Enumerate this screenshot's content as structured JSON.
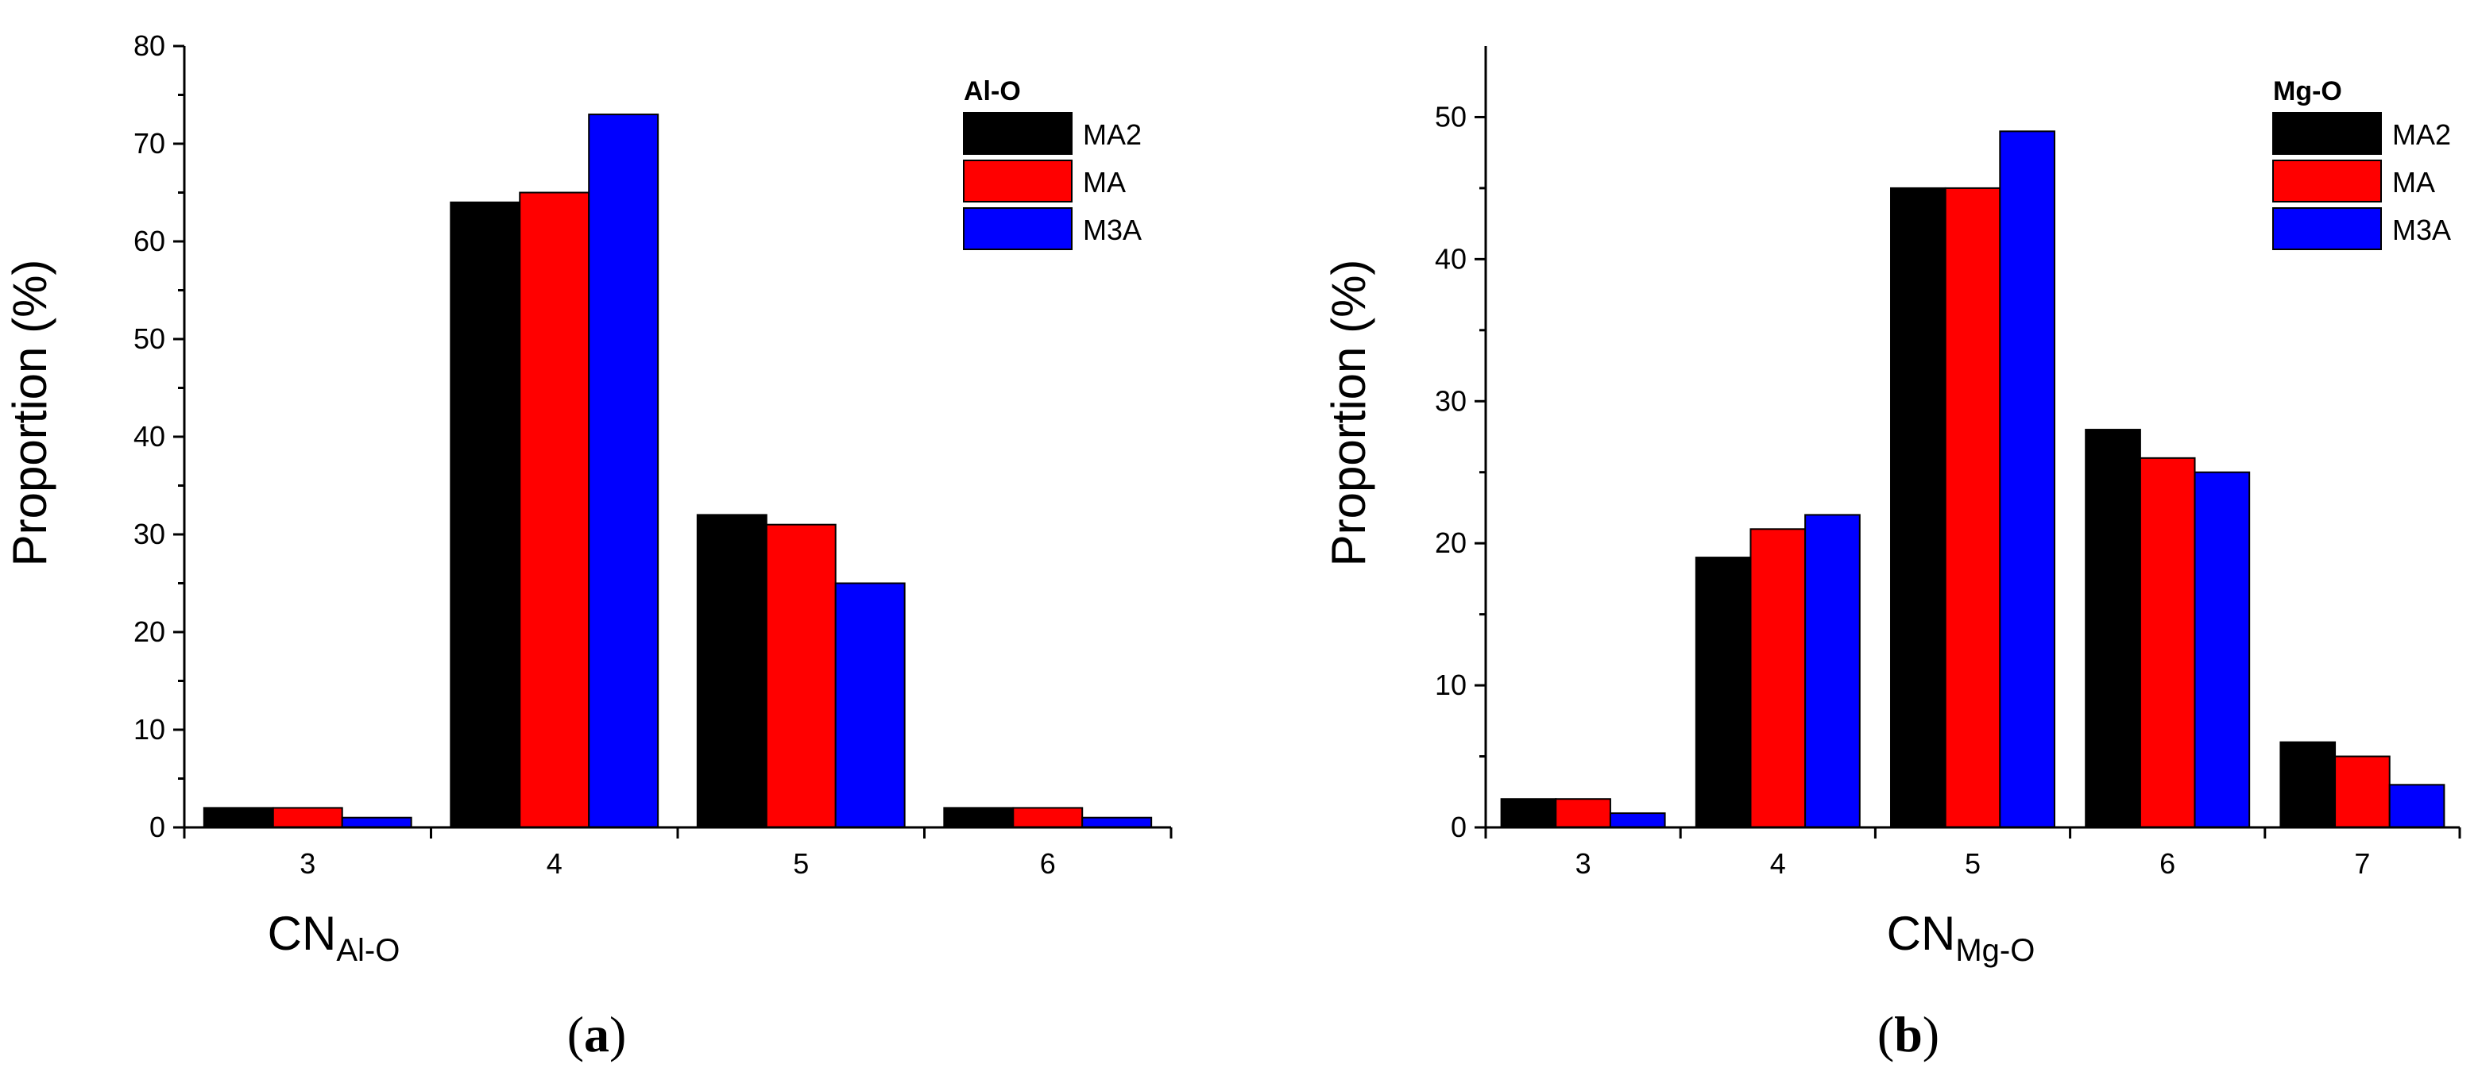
{
  "colors": {
    "MA2": "#000000",
    "MA": "#ff0000",
    "M3A": "#0000ff"
  },
  "chart_data": [
    {
      "type": "bar",
      "panel_label": "a",
      "legend_title": "Al-O",
      "categories": [
        "3",
        "4",
        "5",
        "6"
      ],
      "series": [
        {
          "name": "MA2",
          "values": [
            2,
            64,
            32,
            2
          ]
        },
        {
          "name": "MA",
          "values": [
            2,
            65,
            31,
            2
          ]
        },
        {
          "name": "M3A",
          "values": [
            1,
            73,
            25,
            1
          ]
        }
      ],
      "xlabel_main": "CN",
      "xlabel_sub": "Al-O",
      "ylabel": "Proportion (%)",
      "ylim": [
        0,
        80
      ],
      "yticks": [
        "0",
        "10",
        "20",
        "30",
        "40",
        "50",
        "60",
        "70",
        "80"
      ],
      "legend_position": "top-right"
    },
    {
      "type": "bar",
      "panel_label": "b",
      "legend_title": "Mg-O",
      "categories": [
        "3",
        "4",
        "5",
        "6",
        "7"
      ],
      "series": [
        {
          "name": "MA2",
          "values": [
            2,
            19,
            45,
            28,
            6
          ]
        },
        {
          "name": "MA",
          "values": [
            2,
            21,
            45,
            26,
            5
          ]
        },
        {
          "name": "M3A",
          "values": [
            1,
            22,
            49,
            25,
            3
          ]
        }
      ],
      "xlabel_main": "CN",
      "xlabel_sub": "Mg-O",
      "ylabel": "Proportion (%)",
      "ylim": [
        0,
        55
      ],
      "yticks": [
        "0",
        "10",
        "20",
        "30",
        "40",
        "50"
      ],
      "legend_position": "top-right"
    }
  ]
}
